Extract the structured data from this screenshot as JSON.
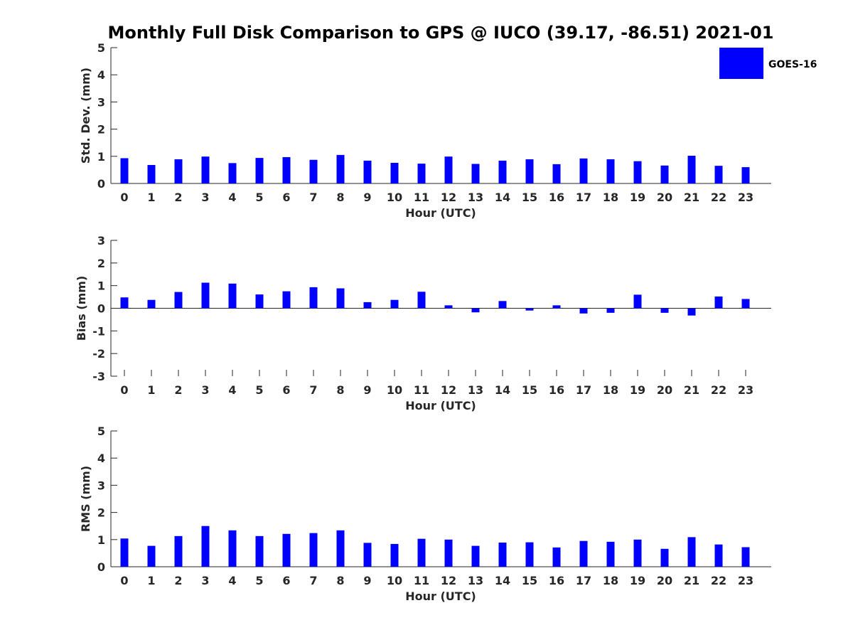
{
  "title": "Monthly Full Disk Comparison to GPS @ IUCO (39.17, -86.51) 2021-01",
  "legend": {
    "label": "GOES-16",
    "color": "#0000ff",
    "placement": "top-right"
  },
  "chart_data": [
    {
      "type": "bar",
      "xlabel": "Hour (UTC)",
      "ylabel": "Std. Dev. (mm)",
      "ylim": [
        0,
        5
      ],
      "yticks": [
        0,
        1,
        2,
        3,
        4,
        5
      ],
      "categories": [
        "0",
        "1",
        "2",
        "3",
        "4",
        "5",
        "6",
        "7",
        "8",
        "9",
        "10",
        "11",
        "12",
        "13",
        "14",
        "15",
        "16",
        "17",
        "18",
        "19",
        "20",
        "21",
        "22",
        "23"
      ],
      "series": [
        {
          "name": "GOES-16",
          "color": "#0000ff",
          "values": [
            0.93,
            0.68,
            0.89,
            0.99,
            0.75,
            0.94,
            0.97,
            0.87,
            1.05,
            0.84,
            0.76,
            0.73,
            0.99,
            0.72,
            0.84,
            0.89,
            0.71,
            0.92,
            0.89,
            0.82,
            0.66,
            1.02,
            0.65,
            0.6
          ]
        }
      ]
    },
    {
      "type": "bar",
      "xlabel": "Hour (UTC)",
      "ylabel": "Bias (mm)",
      "ylim": [
        -3,
        3
      ],
      "yticks": [
        -3,
        -2,
        -1,
        0,
        1,
        2,
        3
      ],
      "categories": [
        "0",
        "1",
        "2",
        "3",
        "4",
        "5",
        "6",
        "7",
        "8",
        "9",
        "10",
        "11",
        "12",
        "13",
        "14",
        "15",
        "16",
        "17",
        "18",
        "19",
        "20",
        "21",
        "22",
        "23"
      ],
      "series": [
        {
          "name": "GOES-16",
          "color": "#0000ff",
          "values": [
            0.48,
            0.37,
            0.72,
            1.13,
            1.09,
            0.61,
            0.75,
            0.93,
            0.88,
            0.27,
            0.37,
            0.73,
            0.13,
            -0.18,
            0.32,
            -0.1,
            0.13,
            -0.23,
            -0.2,
            0.6,
            -0.2,
            -0.32,
            0.52,
            0.41
          ]
        }
      ]
    },
    {
      "type": "bar",
      "xlabel": "Hour (UTC)",
      "ylabel": "RMS (mm)",
      "ylim": [
        0,
        5
      ],
      "yticks": [
        0,
        1,
        2,
        3,
        4,
        5
      ],
      "categories": [
        "0",
        "1",
        "2",
        "3",
        "4",
        "5",
        "6",
        "7",
        "8",
        "9",
        "10",
        "11",
        "12",
        "13",
        "14",
        "15",
        "16",
        "17",
        "18",
        "19",
        "20",
        "21",
        "22",
        "23"
      ],
      "series": [
        {
          "name": "GOES-16",
          "color": "#0000ff",
          "values": [
            1.04,
            0.77,
            1.13,
            1.5,
            1.34,
            1.13,
            1.21,
            1.24,
            1.34,
            0.88,
            0.84,
            1.03,
            1.0,
            0.77,
            0.89,
            0.9,
            0.71,
            0.95,
            0.92,
            1.0,
            0.66,
            1.09,
            0.82,
            0.72
          ]
        }
      ]
    }
  ]
}
